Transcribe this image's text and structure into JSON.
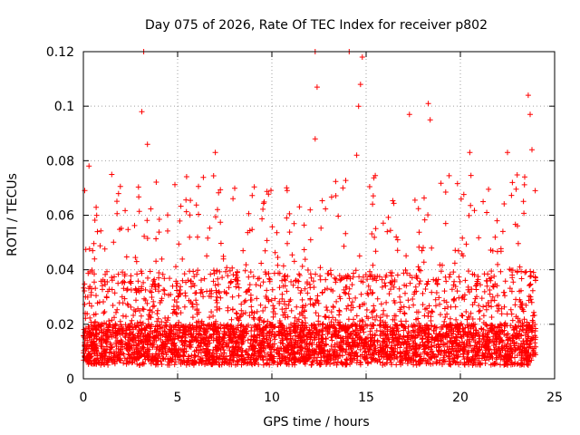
{
  "chart_data": {
    "type": "scatter",
    "title": "Day 075 of 2026, Rate Of TEC Index for receiver p802",
    "xlabel": "GPS time / hours",
    "ylabel": "ROTI / TECUs",
    "xlim": [
      0,
      25
    ],
    "ylim": [
      0,
      0.12
    ],
    "x_ticks": [
      "0",
      "5",
      "10",
      "15",
      "20",
      "25"
    ],
    "y_ticks": [
      "0",
      "0.02",
      "0.04",
      "0.06",
      "0.08",
      "0.1",
      "0.12"
    ],
    "grid": true,
    "marker": "plus",
    "series_color": "#ff0000",
    "data_extent_hours": [
      0,
      24
    ],
    "approx_typical_range": [
      0.005,
      0.04
    ],
    "notable_points": [
      {
        "x": 0.3,
        "y": 0.078
      },
      {
        "x": 3.2,
        "y": 0.12
      },
      {
        "x": 3.1,
        "y": 0.098
      },
      {
        "x": 3.4,
        "y": 0.086
      },
      {
        "x": 7.0,
        "y": 0.083
      },
      {
        "x": 12.3,
        "y": 0.12
      },
      {
        "x": 12.4,
        "y": 0.107
      },
      {
        "x": 12.3,
        "y": 0.088
      },
      {
        "x": 14.1,
        "y": 0.12
      },
      {
        "x": 14.8,
        "y": 0.118
      },
      {
        "x": 14.7,
        "y": 0.108
      },
      {
        "x": 14.6,
        "y": 0.1
      },
      {
        "x": 14.5,
        "y": 0.082
      },
      {
        "x": 17.3,
        "y": 0.097
      },
      {
        "x": 18.3,
        "y": 0.101
      },
      {
        "x": 18.4,
        "y": 0.095
      },
      {
        "x": 23.6,
        "y": 0.104
      },
      {
        "x": 23.7,
        "y": 0.097
      },
      {
        "x": 23.8,
        "y": 0.084
      },
      {
        "x": 22.5,
        "y": 0.083
      },
      {
        "x": 20.5,
        "y": 0.083
      }
    ]
  }
}
